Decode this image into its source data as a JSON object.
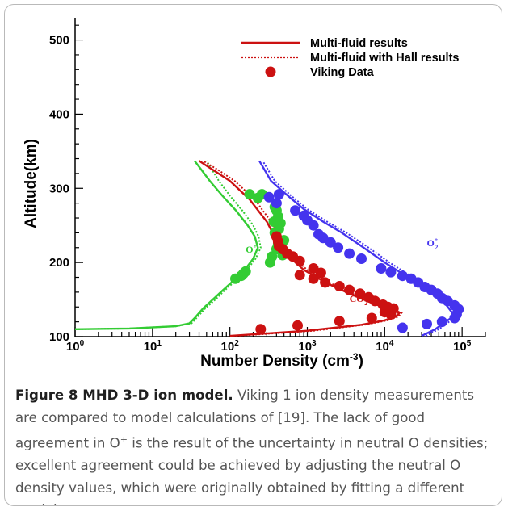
{
  "caption": {
    "label": "Figure 8 MHD 3-D ion model.",
    "text": " Viking 1 ion density measurements are compared to model calculations of [19]. The lack of good agreement in O",
    "sup": "+",
    "text2": " is the result of the uncertainty in neutral O densities; excellent agreement could be achieved by adjusting the neutral O density values, which were originally obtained by fitting a different model."
  },
  "chart_data": {
    "type": "line",
    "xlabel": "Number Density (cm",
    "xlabel_sup": "-3",
    "xlabel_end": ")",
    "ylabel": "Altitude(km)",
    "x_scale": "log",
    "xlim": [
      1,
      200000
    ],
    "ylim": [
      100,
      530
    ],
    "x_ticks": [
      {
        "value": 1,
        "base": "10",
        "exp": "0"
      },
      {
        "value": 10,
        "base": "10",
        "exp": "1"
      },
      {
        "value": 100,
        "base": "10",
        "exp": "2"
      },
      {
        "value": 1000,
        "base": "10",
        "exp": "3"
      },
      {
        "value": 10000,
        "base": "10",
        "exp": "4"
      },
      {
        "value": 100000,
        "base": "10",
        "exp": "5"
      }
    ],
    "y_ticks": [
      100,
      200,
      300,
      400,
      500
    ],
    "grid": false,
    "legend_position": "top-right",
    "legend": [
      {
        "label": "Multi-fluid results",
        "style": "solid"
      },
      {
        "label": "Multi-fluid with Hall results",
        "style": "dotted"
      },
      {
        "label": "Viking Data",
        "style": "marker"
      }
    ],
    "annotations": [
      {
        "text": "O",
        "sup": "+",
        "sub": "",
        "x": 160,
        "y": 213,
        "color": "#33cc33"
      },
      {
        "text": "O",
        "sup": "+",
        "sub": "2",
        "x": 35000,
        "y": 222,
        "color": "#4433ee"
      },
      {
        "text": "CO",
        "sup": "+",
        "sub": "2",
        "x": 3500,
        "y": 147,
        "color": "#cc1111"
      }
    ],
    "series": [
      {
        "species": "O+",
        "color": "#33cc33",
        "model": [
          [
            1,
            110
          ],
          [
            5,
            111
          ],
          [
            20,
            114
          ],
          [
            30,
            118
          ],
          [
            35,
            125
          ],
          [
            45,
            138
          ],
          [
            60,
            150
          ],
          [
            80,
            162
          ],
          [
            110,
            175
          ],
          [
            150,
            188
          ],
          [
            200,
            205
          ],
          [
            230,
            220
          ],
          [
            210,
            235
          ],
          [
            170,
            250
          ],
          [
            120,
            270
          ],
          [
            80,
            290
          ],
          [
            55,
            310
          ],
          [
            35,
            337
          ]
        ],
        "hall": [
          [
            1,
            110
          ],
          [
            5,
            111
          ],
          [
            20,
            114
          ],
          [
            32,
            118
          ],
          [
            37,
            125
          ],
          [
            48,
            138
          ],
          [
            65,
            150
          ],
          [
            85,
            162
          ],
          [
            118,
            175
          ],
          [
            160,
            188
          ],
          [
            215,
            205
          ],
          [
            250,
            220
          ],
          [
            235,
            235
          ],
          [
            200,
            250
          ],
          [
            145,
            270
          ],
          [
            100,
            290
          ],
          [
            72,
            310
          ],
          [
            50,
            337
          ]
        ],
        "data": [
          [
            118,
            178
          ],
          [
            140,
            182
          ],
          [
            150,
            185
          ],
          [
            160,
            188
          ],
          [
            350,
            208
          ],
          [
            330,
            200
          ],
          [
            480,
            210
          ],
          [
            400,
            218
          ],
          [
            420,
            225
          ],
          [
            500,
            230
          ],
          [
            380,
            240
          ],
          [
            430,
            245
          ],
          [
            450,
            253
          ],
          [
            370,
            255
          ],
          [
            420,
            262
          ],
          [
            400,
            270
          ],
          [
            380,
            275
          ],
          [
            230,
            287
          ],
          [
            180,
            292
          ],
          [
            260,
            292
          ]
        ]
      },
      {
        "species": "CO2+",
        "color": "#cc1111",
        "model": [
          [
            100,
            101
          ],
          [
            1000,
            108
          ],
          [
            5000,
            116
          ],
          [
            10000,
            122
          ],
          [
            14000,
            127
          ],
          [
            15500,
            132
          ],
          [
            13000,
            135
          ],
          [
            7000,
            145
          ],
          [
            3500,
            158
          ],
          [
            1800,
            172
          ],
          [
            900,
            190
          ],
          [
            550,
            210
          ],
          [
            400,
            230
          ],
          [
            300,
            255
          ],
          [
            180,
            285
          ],
          [
            100,
            310
          ],
          [
            60,
            325
          ],
          [
            40,
            337
          ]
        ],
        "hall": [
          [
            120,
            101
          ],
          [
            1200,
            108
          ],
          [
            5500,
            116
          ],
          [
            11000,
            122
          ],
          [
            15000,
            127
          ],
          [
            16500,
            132
          ],
          [
            14000,
            135
          ],
          [
            7600,
            145
          ],
          [
            3800,
            158
          ],
          [
            2000,
            172
          ],
          [
            1000,
            190
          ],
          [
            600,
            210
          ],
          [
            440,
            230
          ],
          [
            340,
            255
          ],
          [
            210,
            285
          ],
          [
            115,
            310
          ],
          [
            70,
            325
          ],
          [
            45,
            337
          ]
        ],
        "data": [
          [
            250,
            110
          ],
          [
            750,
            115
          ],
          [
            2600,
            121
          ],
          [
            6800,
            125
          ],
          [
            12000,
            130
          ],
          [
            10000,
            133
          ],
          [
            13000,
            138
          ],
          [
            11000,
            140
          ],
          [
            9500,
            143
          ],
          [
            7500,
            148
          ],
          [
            6200,
            153
          ],
          [
            4800,
            158
          ],
          [
            3500,
            163
          ],
          [
            2600,
            168
          ],
          [
            1700,
            173
          ],
          [
            1200,
            178
          ],
          [
            800,
            183
          ],
          [
            1500,
            186
          ],
          [
            1200,
            192
          ],
          [
            800,
            202
          ],
          [
            650,
            208
          ],
          [
            550,
            212
          ],
          [
            480,
            218
          ],
          [
            430,
            222
          ],
          [
            420,
            228
          ],
          [
            400,
            235
          ]
        ]
      },
      {
        "species": "O2+",
        "color": "#4433ee",
        "model": [
          [
            30000,
            101
          ],
          [
            45000,
            110
          ],
          [
            65000,
            122
          ],
          [
            80000,
            128
          ],
          [
            60000,
            145
          ],
          [
            35000,
            163
          ],
          [
            20000,
            180
          ],
          [
            10000,
            200
          ],
          [
            5000,
            222
          ],
          [
            2800,
            240
          ],
          [
            1600,
            255
          ],
          [
            900,
            272
          ],
          [
            560,
            290
          ],
          [
            340,
            310
          ],
          [
            240,
            337
          ]
        ],
        "hall": [
          [
            34000,
            101
          ],
          [
            50000,
            110
          ],
          [
            72000,
            122
          ],
          [
            90000,
            128
          ],
          [
            68000,
            145
          ],
          [
            40000,
            163
          ],
          [
            23000,
            180
          ],
          [
            11500,
            200
          ],
          [
            5800,
            222
          ],
          [
            3200,
            240
          ],
          [
            1800,
            255
          ],
          [
            1000,
            272
          ],
          [
            620,
            290
          ],
          [
            380,
            310
          ],
          [
            265,
            337
          ]
        ],
        "data": [
          [
            17000,
            112
          ],
          [
            35000,
            117
          ],
          [
            55000,
            120
          ],
          [
            80000,
            125
          ],
          [
            85000,
            130
          ],
          [
            90000,
            137
          ],
          [
            80000,
            142
          ],
          [
            65000,
            148
          ],
          [
            55000,
            152
          ],
          [
            48000,
            158
          ],
          [
            40000,
            163
          ],
          [
            33000,
            167
          ],
          [
            27000,
            173
          ],
          [
            22000,
            178
          ],
          [
            17000,
            182
          ],
          [
            12000,
            187
          ],
          [
            9000,
            192
          ],
          [
            5000,
            205
          ],
          [
            3500,
            212
          ],
          [
            2500,
            220
          ],
          [
            2000,
            227
          ],
          [
            1600,
            233
          ],
          [
            1400,
            238
          ],
          [
            1200,
            250
          ],
          [
            1000,
            257
          ],
          [
            900,
            263
          ],
          [
            700,
            270
          ],
          [
            400,
            280
          ],
          [
            320,
            288
          ],
          [
            430,
            292
          ]
        ]
      }
    ]
  }
}
